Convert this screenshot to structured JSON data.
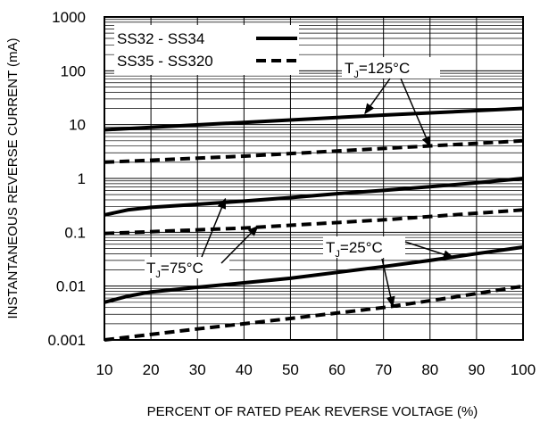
{
  "chart_data": {
    "type": "line",
    "title": "",
    "xlabel": "PERCENT OF RATED PEAK REVERSE VOLTAGE (%)",
    "ylabel": "INSTANTANEOUS REVERSE CURRENT (mA)",
    "x_scale": "linear",
    "y_scale": "log",
    "xlim": [
      10,
      100
    ],
    "ylim": [
      0.001,
      1000
    ],
    "grid": true,
    "x_ticks": [
      "10",
      "20",
      "30",
      "40",
      "50",
      "60",
      "70",
      "80",
      "90",
      "100"
    ],
    "y_ticks": [
      "0.001",
      "0.01",
      "0.1",
      "1",
      "10",
      "100",
      "1000"
    ],
    "legend": {
      "placement": "top-left",
      "entries": [
        {
          "label": "SS32 - SS34",
          "style": "solid"
        },
        {
          "label": "SS35 - SS320",
          "style": "dashed"
        }
      ]
    },
    "series": [
      {
        "group": "SS32 - SS34",
        "temp": "125",
        "style": "solid",
        "x": [
          10,
          40,
          70,
          100
        ],
        "y": [
          8,
          11,
          15,
          20
        ]
      },
      {
        "group": "SS35 - SS320",
        "temp": "125",
        "style": "dashed",
        "x": [
          10,
          40,
          70,
          100
        ],
        "y": [
          2,
          2.6,
          3.6,
          5
        ]
      },
      {
        "group": "SS32 - SS34",
        "temp": "75",
        "style": "solid",
        "x": [
          10,
          15,
          20,
          30,
          40,
          50,
          60,
          70,
          80,
          90,
          100
        ],
        "y": [
          0.21,
          0.26,
          0.29,
          0.33,
          0.38,
          0.44,
          0.52,
          0.6,
          0.7,
          0.83,
          1.0
        ]
      },
      {
        "group": "SS35 - SS320",
        "temp": "75",
        "style": "dashed",
        "x": [
          10,
          40,
          70,
          100
        ],
        "y": [
          0.095,
          0.12,
          0.17,
          0.26
        ]
      },
      {
        "group": "SS32 - SS34",
        "temp": "25",
        "style": "solid",
        "x": [
          10,
          15,
          20,
          30,
          40,
          50,
          60,
          70,
          80,
          90,
          100
        ],
        "y": [
          0.005,
          0.0065,
          0.0078,
          0.0095,
          0.0115,
          0.014,
          0.018,
          0.023,
          0.03,
          0.04,
          0.053
        ]
      },
      {
        "group": "SS35 - SS320",
        "temp": "25",
        "style": "dashed",
        "x": [
          10,
          30,
          50,
          70,
          85,
          100
        ],
        "y": [
          0.001,
          0.0016,
          0.0025,
          0.004,
          0.0062,
          0.01
        ]
      }
    ],
    "annotations": [
      {
        "main": "T",
        "sub": "J",
        "rest": "=125°C",
        "arrows_to": [
          [
            66,
            16
          ],
          [
            80,
            3.9
          ]
        ]
      },
      {
        "main": "T",
        "sub": "J",
        "rest": "=75°C",
        "arrows_to": [
          [
            36,
            0.42
          ],
          [
            43,
            0.13
          ]
        ]
      },
      {
        "main": "T",
        "sub": "J",
        "rest": "=25°C",
        "arrows_to": [
          [
            85,
            0.034
          ],
          [
            72,
            0.0042
          ]
        ]
      }
    ]
  }
}
